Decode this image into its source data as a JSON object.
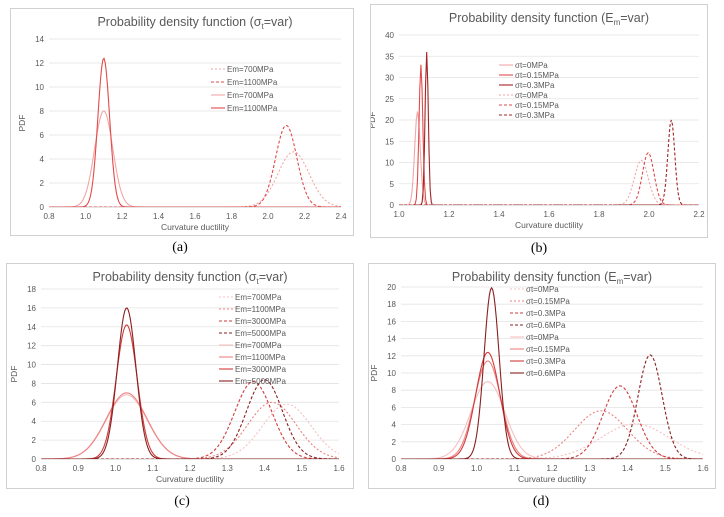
{
  "chart_data": [
    {
      "type": "line",
      "panel_label": "(a)",
      "title_parts": [
        "Probability density function (σ",
        "t",
        "=var)"
      ],
      "xlabel": "Curvature ductility",
      "ylabel": "PDF",
      "xlim": [
        0.8,
        2.4
      ],
      "ylim": [
        0,
        14
      ],
      "xticks": [
        "0.8",
        "1.0",
        "1.2",
        "1.4",
        "1.6",
        "1.8",
        "2.0",
        "2.2",
        "2.4"
      ],
      "yticks": [
        "0",
        "2",
        "4",
        "6",
        "8",
        "10",
        "12",
        "14"
      ],
      "legend_position": "right-center",
      "series": [
        {
          "name": "Em=700MPa",
          "color": "#f2a6a6",
          "dash": "2,2",
          "mu": 2.14,
          "peak": 4.6,
          "sigma": 0.085
        },
        {
          "name": "Em=1100MPa",
          "color": "#e34a4a",
          "dash": "3,2",
          "mu": 2.1,
          "peak": 6.8,
          "sigma": 0.058
        },
        {
          "name": "Em=700MPa",
          "color": "#f2a6a6",
          "dash": "",
          "mu": 1.1,
          "peak": 8.0,
          "sigma": 0.05
        },
        {
          "name": "Em=1100MPa",
          "color": "#e34a4a",
          "dash": "",
          "mu": 1.1,
          "peak": 12.4,
          "sigma": 0.032
        }
      ]
    },
    {
      "type": "line",
      "panel_label": "(b)",
      "title_parts": [
        "Probability density function (E",
        "m",
        "=var)"
      ],
      "xlabel": "Curvature ductility",
      "ylabel": "PDF",
      "xlim": [
        1.0,
        2.3
      ],
      "ylim": [
        0,
        40
      ],
      "xticks": [
        "1.0",
        "1.2",
        "1.4",
        "1.6",
        "1.8",
        "2.0",
        "2.2"
      ],
      "yticks": [
        "0",
        "5",
        "10",
        "15",
        "20",
        "25",
        "30",
        "35",
        "40"
      ],
      "legend_position": "center",
      "series": [
        {
          "name": "σt=0MPa",
          "color": "#f2a6a6",
          "dash": "",
          "mu": 1.08,
          "peak": 22,
          "sigma": 0.012
        },
        {
          "name": "σt=0.15MPa",
          "color": "#e34a4a",
          "dash": "",
          "mu": 1.095,
          "peak": 33,
          "sigma": 0.008
        },
        {
          "name": "σt=0.3MPa",
          "color": "#a32424",
          "dash": "",
          "mu": 1.12,
          "peak": 36,
          "sigma": 0.007
        },
        {
          "name": "σt=0MPa",
          "color": "#f2a6a6",
          "dash": "2,2",
          "mu": 2.05,
          "peak": 10.5,
          "sigma": 0.03
        },
        {
          "name": "σt=0.15MPa",
          "color": "#e34a4a",
          "dash": "3,2",
          "mu": 2.08,
          "peak": 12.3,
          "sigma": 0.025
        },
        {
          "name": "σt=0.3MPa",
          "color": "#a32424",
          "dash": "3,2",
          "mu": 2.18,
          "peak": 20,
          "sigma": 0.015
        }
      ]
    },
    {
      "type": "line",
      "panel_label": "(c)",
      "title_parts": [
        "Probability density function (σ",
        "t",
        "=var)"
      ],
      "xlabel": "Curvature ductility",
      "ylabel": "PDF",
      "xlim": [
        0.8,
        1.6
      ],
      "ylim": [
        0,
        18
      ],
      "xticks": [
        "0.8",
        "0.9",
        "1.0",
        "1.1",
        "1.2",
        "1.3",
        "1.4",
        "1.5",
        "1.6"
      ],
      "yticks": [
        "0",
        "2",
        "4",
        "6",
        "8",
        "10",
        "12",
        "14",
        "16",
        "18"
      ],
      "legend_position": "top-right",
      "series": [
        {
          "name": "Em=700MPa",
          "color": "#f5c0c0",
          "dash": "2,2",
          "mu": 1.46,
          "peak": 5.8,
          "sigma": 0.065
        },
        {
          "name": "Em=1100MPa",
          "color": "#ee8080",
          "dash": "2,2",
          "mu": 1.42,
          "peak": 6.0,
          "sigma": 0.065
        },
        {
          "name": "Em=3000MPa",
          "color": "#d13b3b",
          "dash": "3,2",
          "mu": 1.37,
          "peak": 8.2,
          "sigma": 0.05
        },
        {
          "name": "Em=5000MPa",
          "color": "#8a1f1f",
          "dash": "3,2",
          "mu": 1.4,
          "peak": 8.4,
          "sigma": 0.048
        },
        {
          "name": "Em=700MPa",
          "color": "#f5c0c0",
          "dash": "",
          "mu": 1.03,
          "peak": 6.8,
          "sigma": 0.055
        },
        {
          "name": "Em=1100MPa",
          "color": "#ee8080",
          "dash": "",
          "mu": 1.03,
          "peak": 7.0,
          "sigma": 0.055
        },
        {
          "name": "Em=3000MPa",
          "color": "#d13b3b",
          "dash": "",
          "mu": 1.03,
          "peak": 14.2,
          "sigma": 0.028
        },
        {
          "name": "Em=5000MPa",
          "color": "#8a1f1f",
          "dash": "",
          "mu": 1.03,
          "peak": 16.0,
          "sigma": 0.025
        }
      ]
    },
    {
      "type": "line",
      "panel_label": "(d)",
      "title_parts": [
        "Probability density function (E",
        "m",
        "=var)"
      ],
      "xlabel": "Curvature ductility",
      "ylabel": "PDF",
      "xlim": [
        0.8,
        1.6
      ],
      "ylim": [
        0,
        20
      ],
      "xticks": [
        "0.8",
        "0.9",
        "1.0",
        "1.1",
        "1.2",
        "1.3",
        "1.4",
        "1.5",
        "1.6"
      ],
      "yticks": [
        "0",
        "2",
        "4",
        "6",
        "8",
        "10",
        "12",
        "14",
        "16",
        "18",
        "20"
      ],
      "legend_position": "top-center",
      "series": [
        {
          "name": "σt=0MPa",
          "color": "#f5c0c0",
          "dash": "2,2",
          "mu": 1.42,
          "peak": 4.1,
          "sigma": 0.09
        },
        {
          "name": "σt=0.15MPa",
          "color": "#ee8080",
          "dash": "2,2",
          "mu": 1.33,
          "peak": 5.6,
          "sigma": 0.07
        },
        {
          "name": "σt=0.3MPa",
          "color": "#d13b3b",
          "dash": "3,2",
          "mu": 1.38,
          "peak": 8.5,
          "sigma": 0.045
        },
        {
          "name": "σt=0.6MPa",
          "color": "#8a1f1f",
          "dash": "3,2",
          "mu": 1.46,
          "peak": 12.1,
          "sigma": 0.032
        },
        {
          "name": "σt=0MPa",
          "color": "#f5c0c0",
          "dash": "",
          "mu": 1.03,
          "peak": 9.0,
          "sigma": 0.045
        },
        {
          "name": "σt=0.15MPa",
          "color": "#ee8080",
          "dash": "",
          "mu": 1.03,
          "peak": 11.4,
          "sigma": 0.035
        },
        {
          "name": "σt=0.3MPa",
          "color": "#d13b3b",
          "dash": "",
          "mu": 1.03,
          "peak": 12.4,
          "sigma": 0.032
        },
        {
          "name": "σt=0.6MPa",
          "color": "#8a1f1f",
          "dash": "",
          "mu": 1.04,
          "peak": 19.9,
          "sigma": 0.02
        }
      ]
    }
  ]
}
